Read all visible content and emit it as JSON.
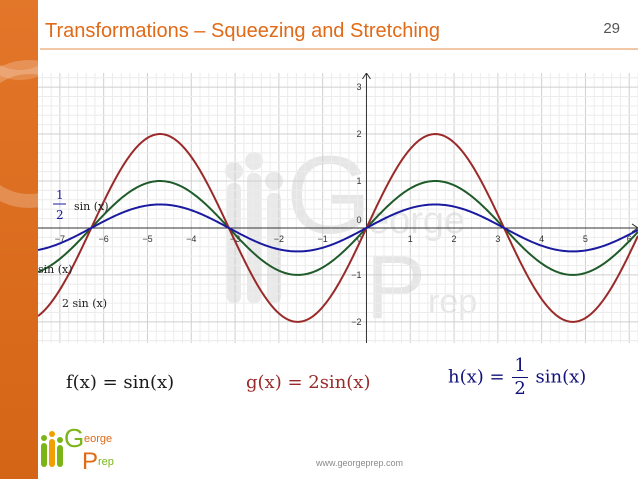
{
  "slide": {
    "title": "Transformations – Squeezing and Stretching",
    "number": "29",
    "footer_url": "www.georgeprep.com"
  },
  "colors": {
    "accent_orange": "#e06a17",
    "curve_f": "#1f5b2a",
    "curve_g": "#9a2a2a",
    "curve_h": "#1a1aa0"
  },
  "chart_data": {
    "type": "line",
    "x_range": [
      -7.5,
      6.2
    ],
    "y_range": [
      -2.45,
      3.3
    ],
    "x_ticks": [
      "−7",
      "−6",
      "−5",
      "−4",
      "−3",
      "−2",
      "−1",
      "0",
      "1",
      "2",
      "3",
      "4",
      "5",
      "6"
    ],
    "y_ticks": [
      "−2",
      "−1",
      "0",
      "1",
      "2",
      "3"
    ],
    "grid": true,
    "series": [
      {
        "name": "sin(x)",
        "function": "sin(x)",
        "amplitude": 1,
        "color": "#1f5b2a"
      },
      {
        "name": "2 sin(x)",
        "function": "2 sin(x)",
        "amplitude": 2,
        "color": "#9a2a2a"
      },
      {
        "name": "1/2 sin(x)",
        "function": "1/2 sin(x)",
        "amplitude": 0.5,
        "color": "#1a1aa0"
      }
    ],
    "labels": {
      "h_num": "1",
      "h_den": "2",
      "h_rest": "sin (x)",
      "f": "sin (x)",
      "g": "2 sin (x)"
    }
  },
  "equations": {
    "f": "f(x) = sin(x)",
    "g": "g(x) = 2sin(x)",
    "h_left": "h(x) =",
    "h_num": "1",
    "h_den": "2",
    "h_right": "sin(x)"
  },
  "watermark": {
    "big_g": "G",
    "eorge": "eorge",
    "big_p": "P",
    "rep": "rep"
  },
  "logo": {
    "g": "G",
    "eorge": "eorge",
    "p": "P",
    "rep": "rep"
  }
}
